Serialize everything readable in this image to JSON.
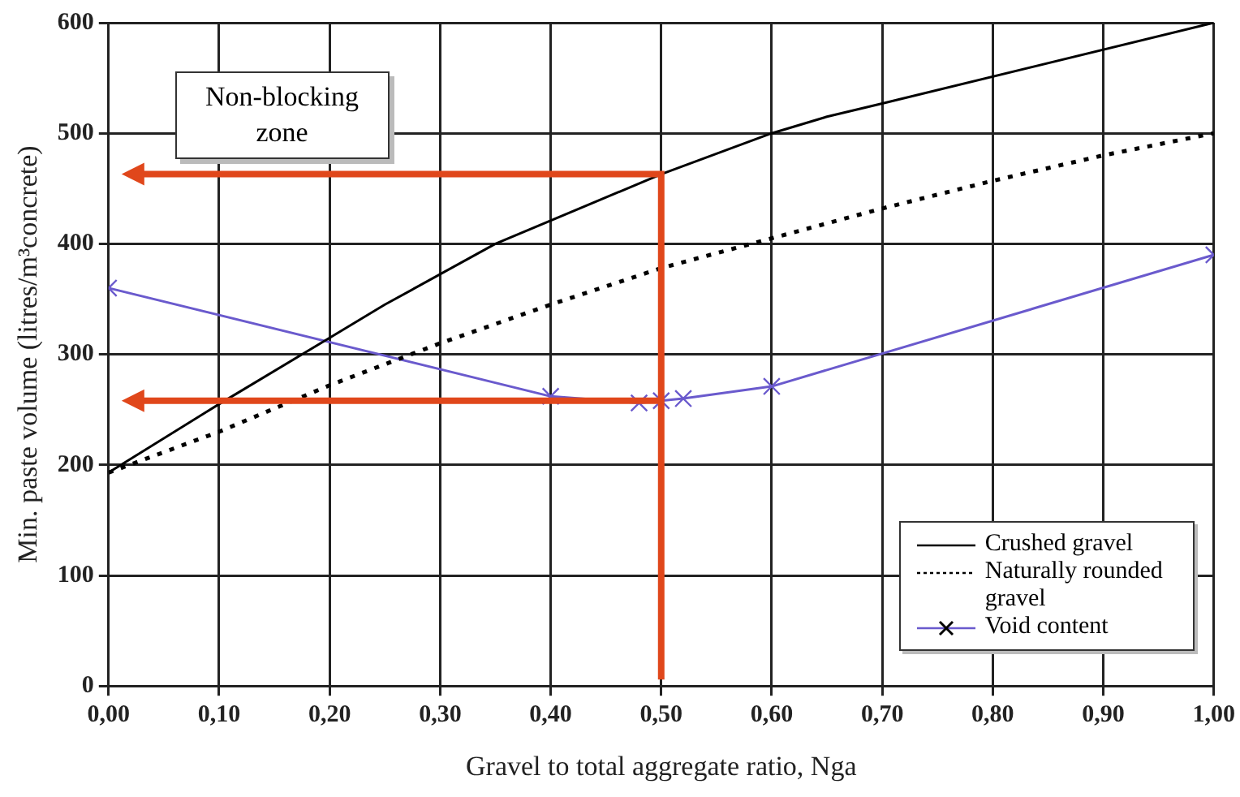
{
  "chart_data": {
    "type": "line",
    "xlabel": "Gravel to total aggregate ratio, Nga",
    "ylabel": "Min. paste volume (litres/m³concrete)",
    "xlim": [
      0,
      1
    ],
    "ylim": [
      0,
      600
    ],
    "xticks": [
      {
        "value": 0,
        "label": "0,00"
      },
      {
        "value": 0.1,
        "label": "0,10"
      },
      {
        "value": 0.2,
        "label": "0,20"
      },
      {
        "value": 0.3,
        "label": "0,30"
      },
      {
        "value": 0.4,
        "label": "0,40"
      },
      {
        "value": 0.5,
        "label": "0,50"
      },
      {
        "value": 0.6,
        "label": "0,60"
      },
      {
        "value": 0.7,
        "label": "0,70"
      },
      {
        "value": 0.8,
        "label": "0,80"
      },
      {
        "value": 0.9,
        "label": "0,90"
      },
      {
        "value": 1,
        "label": "1,00"
      }
    ],
    "yticks": [
      0,
      100,
      200,
      300,
      400,
      500,
      600
    ],
    "grid": true,
    "legend": "bottom right",
    "annotations": [
      "Non-blocking zone"
    ],
    "series": [
      {
        "name": "Crushed gravel",
        "color": "#000000",
        "marker": "none",
        "line_style": "solid",
        "x": [
          0,
          0.1,
          0.2,
          0.25,
          0.35,
          0.5,
          0.6,
          0.65,
          0.7,
          1.0
        ],
        "values": [
          193,
          255,
          315,
          345,
          400,
          463,
          500,
          515,
          527,
          600
        ]
      },
      {
        "name": "Naturally rounded gravel",
        "color": "#000000",
        "marker": "none",
        "line_style": "dotted",
        "x": [
          0,
          0.1,
          0.2,
          0.3,
          0.4,
          0.5,
          0.6,
          0.7,
          0.8,
          0.9,
          1.0
        ],
        "values": [
          193,
          230,
          272,
          310,
          345,
          378,
          405,
          432,
          457,
          480,
          500
        ]
      },
      {
        "name": "Void content",
        "color": "#6a5acd",
        "marker": "cross",
        "line_style": "solid",
        "x": [
          0,
          0.4,
          0.48,
          0.5,
          0.52,
          0.6,
          1.0
        ],
        "values": [
          360,
          262,
          256,
          258,
          260,
          271,
          390
        ]
      }
    ]
  }
}
